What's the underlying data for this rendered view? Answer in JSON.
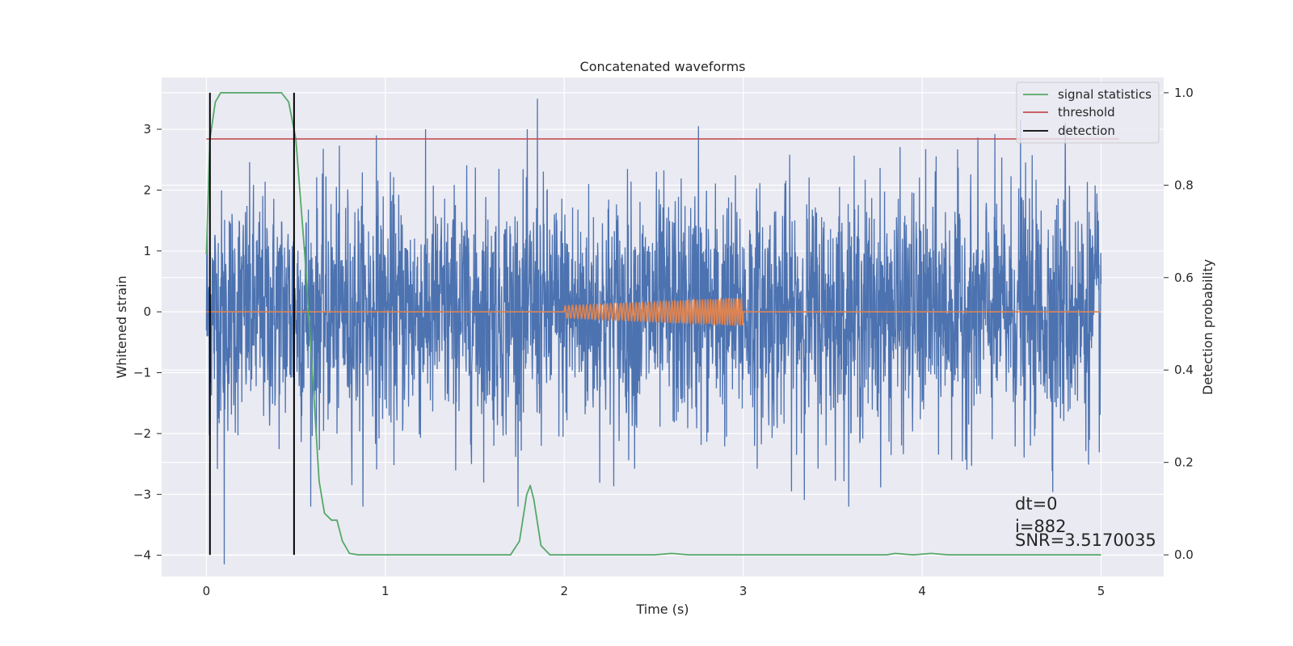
{
  "chart_data": {
    "type": "line",
    "title": "Concatenated waveforms",
    "xlabel": "Time (s)",
    "ylabel": "Whitened strain",
    "ylabel_right": "Detection probability",
    "xlim": [
      -0.25,
      5.35
    ],
    "ylim": [
      -4.35,
      3.85
    ],
    "ylim_right": [
      -0.047,
      1.033
    ],
    "x_ticks": [
      0,
      1,
      2,
      3,
      4,
      5
    ],
    "y_ticks": [
      -4,
      -3,
      -2,
      -1,
      0,
      1,
      2,
      3
    ],
    "y_ticks_right": [
      0.0,
      0.2,
      0.4,
      0.6,
      0.8,
      1.0
    ],
    "grid": true,
    "legend_position": "top-right",
    "series": [
      {
        "name": "",
        "axis": "left",
        "color": "#4c72b0",
        "description_kind": "noise",
        "x_range": [
          0,
          5
        ],
        "approx_amplitude": 1.2,
        "peaks": [
          [
            0.1,
            -4.15
          ],
          [
            1.85,
            3.5
          ],
          [
            4.55,
            3.15
          ],
          [
            4.8,
            3.1
          ],
          [
            2.75,
            3.05
          ],
          [
            0.95,
            2.9
          ]
        ]
      },
      {
        "name": "",
        "axis": "left",
        "color": "#dd8452",
        "x_range": [
          0,
          5
        ],
        "chirp_start": 2.0,
        "chirp_end": 3.0,
        "chirp_amplitude_start": 0.1,
        "chirp_amplitude_end": 0.22
      },
      {
        "name": "signal statistics",
        "axis": "right",
        "color": "#55a868",
        "points": [
          [
            0,
            0.65
          ],
          [
            0.02,
            0.9
          ],
          [
            0.05,
            0.98
          ],
          [
            0.08,
            1.0
          ],
          [
            0.3,
            1.0
          ],
          [
            0.42,
            1.0
          ],
          [
            0.46,
            0.98
          ],
          [
            0.5,
            0.9
          ],
          [
            0.55,
            0.65
          ],
          [
            0.6,
            0.35
          ],
          [
            0.63,
            0.16
          ],
          [
            0.66,
            0.09
          ],
          [
            0.7,
            0.075
          ],
          [
            0.73,
            0.075
          ],
          [
            0.76,
            0.03
          ],
          [
            0.8,
            0.003
          ],
          [
            0.85,
            0.0
          ],
          [
            1.7,
            0.0
          ],
          [
            1.75,
            0.03
          ],
          [
            1.79,
            0.13
          ],
          [
            1.81,
            0.15
          ],
          [
            1.83,
            0.12
          ],
          [
            1.87,
            0.02
          ],
          [
            1.92,
            0.0
          ],
          [
            2.5,
            0.0
          ],
          [
            2.6,
            0.003
          ],
          [
            2.7,
            0.0
          ],
          [
            3.8,
            0.0
          ],
          [
            3.85,
            0.003
          ],
          [
            3.95,
            0.0
          ],
          [
            4.05,
            0.003
          ],
          [
            4.15,
            0.0
          ],
          [
            5.0,
            0.0
          ]
        ]
      },
      {
        "name": "threshold",
        "axis": "right",
        "color": "#c44e52",
        "x": [
          0,
          5.1
        ],
        "value": 0.9
      },
      {
        "name": "detection",
        "axis": "right",
        "color": "#000000",
        "x_values": [
          0.02,
          0.49
        ],
        "span": [
          0.0,
          1.0
        ]
      }
    ],
    "annotations": [
      "dt=0",
      "i=882",
      "SNR=3.5170035"
    ]
  }
}
